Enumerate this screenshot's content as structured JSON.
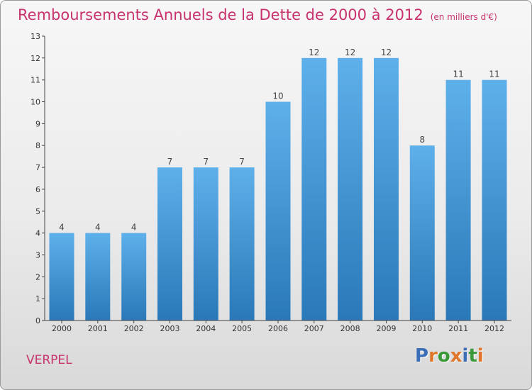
{
  "header": {
    "title": "Remboursements Annuels de la Dette de 2000 à 2012",
    "unit": "(en milliers d'€)"
  },
  "footer": {
    "commune": "VERPEL",
    "logo": [
      "P",
      "r",
      "o",
      "x",
      "i",
      "t",
      "i"
    ],
    "logo_colors": [
      "#3a6fb7",
      "#e0762a",
      "#3a9a3a",
      "#e0762a",
      "#3a6fb7",
      "#3a9a3a",
      "#e0762a"
    ]
  },
  "colors": {
    "bar_light": "#5eb0ea",
    "bar_dark": "#2a78b8",
    "accent": "#c8326e",
    "axis": "#444444"
  },
  "chart_data": {
    "type": "bar",
    "title": "Remboursements Annuels de la Dette de 2000 à 2012",
    "subtitle": "(en milliers d'€)",
    "categories": [
      "2000",
      "2001",
      "2002",
      "2003",
      "2004",
      "2005",
      "2006",
      "2007",
      "2008",
      "2009",
      "2010",
      "2011",
      "2012"
    ],
    "values": [
      4,
      4,
      4,
      7,
      7,
      7,
      10,
      12,
      12,
      12,
      8,
      11,
      11
    ],
    "xlabel": "",
    "ylabel": "",
    "ylim": [
      0,
      13
    ],
    "yticks": [
      0,
      1,
      2,
      3,
      4,
      5,
      6,
      7,
      8,
      9,
      10,
      11,
      12,
      13
    ],
    "grid": false,
    "data_labels": true
  }
}
